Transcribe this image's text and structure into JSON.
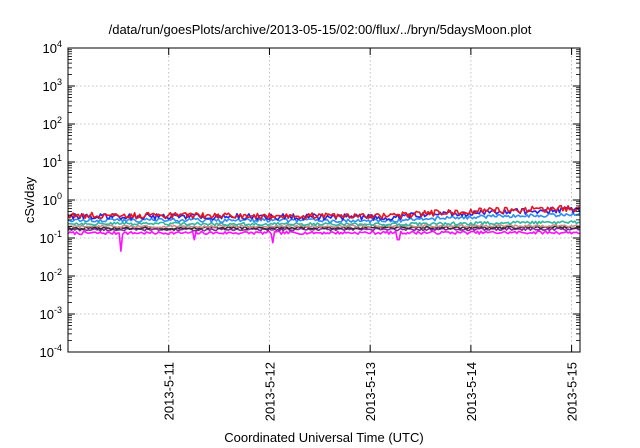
{
  "chart_data": {
    "type": "line",
    "title": "/data/run/goesPlots/archive/2013-05-15/02:00/flux/../bryn/5daysMoon.plot",
    "xlabel": "Coordinated Universal Time (UTC)",
    "ylabel": "cSv/day",
    "yscale": "log",
    "ylim": [
      0.0001,
      10000
    ],
    "y_ticks": [
      {
        "value": 0.0001,
        "base": "10",
        "exp": "-4"
      },
      {
        "value": 0.001,
        "base": "10",
        "exp": "-3"
      },
      {
        "value": 0.01,
        "base": "10",
        "exp": "-2"
      },
      {
        "value": 0.1,
        "base": "10",
        "exp": "-1"
      },
      {
        "value": 1,
        "base": "10",
        "exp": "0"
      },
      {
        "value": 10,
        "base": "10",
        "exp": "1"
      },
      {
        "value": 100,
        "base": "10",
        "exp": "2"
      },
      {
        "value": 1000,
        "base": "10",
        "exp": "3"
      },
      {
        "value": 10000,
        "base": "10",
        "exp": "4"
      }
    ],
    "xlim": [
      "2013-05-10T00:00",
      "2013-05-15T02:00"
    ],
    "x_ticks": [
      "2013-5-11",
      "2013-5-12",
      "2013-5-13",
      "2013-5-14",
      "2013-5-15"
    ],
    "x_tick_values": [
      "2013-05-11T00:00",
      "2013-05-12T00:00",
      "2013-05-13T00:00",
      "2013-05-14T00:00",
      "2013-05-15T00:00"
    ],
    "grid": true,
    "legend": "none",
    "series": [
      {
        "color": "#e8141e",
        "base": [
          [
            0,
            0.4
          ],
          [
            3.2,
            0.38
          ],
          [
            3.6,
            0.46
          ],
          [
            4.3,
            0.55
          ],
          [
            5.1,
            0.62
          ]
        ],
        "noise": 0.18
      },
      {
        "color": "#2727e0",
        "base": [
          [
            0,
            0.38
          ],
          [
            3.2,
            0.36
          ],
          [
            3.6,
            0.42
          ],
          [
            4.3,
            0.5
          ],
          [
            5.1,
            0.56
          ]
        ],
        "noise": 0.18
      },
      {
        "color": "#2f8ef0",
        "base": [
          [
            0,
            0.3
          ],
          [
            3.2,
            0.29
          ],
          [
            3.6,
            0.32
          ],
          [
            4.3,
            0.38
          ],
          [
            5.1,
            0.42
          ]
        ],
        "noise": 0.12
      },
      {
        "color": "#2fb8a0",
        "base": [
          [
            0,
            0.24
          ],
          [
            3.2,
            0.23
          ],
          [
            4.3,
            0.25
          ],
          [
            5.1,
            0.26
          ]
        ],
        "noise": 0.09
      },
      {
        "color": "#d08a8a",
        "base": [
          [
            0,
            0.2
          ],
          [
            5.1,
            0.21
          ]
        ],
        "noise": 0.07
      },
      {
        "color": "#303030",
        "base": [
          [
            0,
            0.18
          ],
          [
            5.1,
            0.19
          ]
        ],
        "noise": 0.07
      },
      {
        "color": "#8a2aa0",
        "base": [
          [
            0,
            0.165
          ],
          [
            5.1,
            0.17
          ]
        ],
        "noise": 0.07
      },
      {
        "color": "#ff10ff",
        "base": [
          [
            0,
            0.135
          ],
          [
            5.1,
            0.14
          ]
        ],
        "noise": 0.09,
        "dips": [
          [
            0.53,
            0.045
          ],
          [
            1.25,
            0.09
          ],
          [
            2.03,
            0.075
          ],
          [
            3.28,
            0.09
          ]
        ]
      }
    ]
  }
}
